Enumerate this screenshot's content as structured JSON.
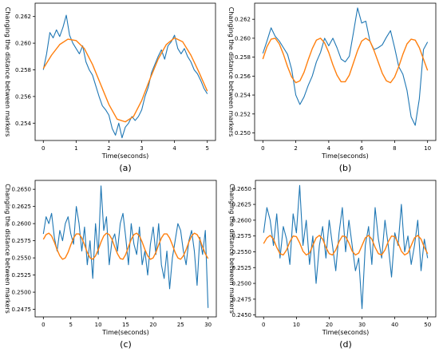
{
  "figure": {
    "series_colors": {
      "measured": "#1f77b4",
      "fit": "#ff7f0e"
    }
  },
  "chart_data": [
    {
      "type": "line",
      "panel": "(a)",
      "xlabel": "Time(seconds)",
      "ylabel": "Changing the distance between markers",
      "xlim": [
        -0.25,
        5.25
      ],
      "ylim": [
        0.2527,
        0.263
      ],
      "xticks": [
        0,
        1,
        2,
        3,
        4,
        5
      ],
      "yticks": [
        "0.254",
        "0.256",
        "0.258",
        "0.260",
        "0.262"
      ],
      "yticks_values": [
        0.254,
        0.256,
        0.258,
        0.26,
        0.262
      ],
      "series": [
        {
          "x": [
            0,
            0.1,
            0.2,
            0.3,
            0.4,
            0.5,
            0.6,
            0.7,
            0.8,
            0.9,
            1.0,
            1.1,
            1.2,
            1.3,
            1.4,
            1.5,
            1.6,
            1.7,
            1.8,
            1.9,
            2.0,
            2.1,
            2.2,
            2.3,
            2.4,
            2.5,
            2.6,
            2.7,
            2.8,
            2.9,
            3.0,
            3.1,
            3.2,
            3.3,
            3.4,
            3.5,
            3.6,
            3.7,
            3.8,
            3.9,
            4.0,
            4.1,
            4.2,
            4.3,
            4.4,
            4.5,
            4.6,
            4.7,
            4.8,
            4.9,
            5.0
          ],
          "y": [
            0.258,
            0.2592,
            0.2608,
            0.2604,
            0.261,
            0.2605,
            0.2612,
            0.2621,
            0.2606,
            0.26,
            0.2596,
            0.2592,
            0.2598,
            0.2586,
            0.258,
            0.2576,
            0.2568,
            0.256,
            0.2553,
            0.255,
            0.2546,
            0.2536,
            0.2531,
            0.254,
            0.2529,
            0.2537,
            0.254,
            0.2545,
            0.2542,
            0.2545,
            0.255,
            0.256,
            0.2567,
            0.2578,
            0.2584,
            0.259,
            0.2595,
            0.2588,
            0.2598,
            0.2601,
            0.2606,
            0.2596,
            0.2592,
            0.2596,
            0.259,
            0.2586,
            0.258,
            0.2577,
            0.2572,
            0.2566,
            0.2562
          ]
        },
        {
          "x": [
            0,
            0.25,
            0.5,
            0.75,
            1.0,
            1.25,
            1.5,
            1.75,
            2.0,
            2.25,
            2.5,
            2.75,
            3.0,
            3.25,
            3.5,
            3.75,
            4.0,
            4.25,
            4.5,
            4.75,
            5.0
          ],
          "y": [
            0.2581,
            0.2591,
            0.2599,
            0.2603,
            0.2602,
            0.2596,
            0.2584,
            0.2569,
            0.2554,
            0.2543,
            0.2541,
            0.2545,
            0.2557,
            0.2573,
            0.2588,
            0.2599,
            0.2604,
            0.2601,
            0.2591,
            0.2578,
            0.2564
          ]
        }
      ]
    },
    {
      "type": "line",
      "panel": "(b)",
      "xlabel": "Time(seconds)",
      "ylabel": "Changing the distance between markers",
      "xlim": [
        -0.5,
        10.5
      ],
      "ylim": [
        0.2492,
        0.2637
      ],
      "xticks": [
        0,
        2,
        4,
        6,
        8,
        10
      ],
      "yticks": [
        "0.250",
        "0.252",
        "0.254",
        "0.256",
        "0.258",
        "0.260",
        "0.262"
      ],
      "yticks_values": [
        0.25,
        0.252,
        0.254,
        0.256,
        0.258,
        0.26,
        0.262
      ],
      "series": [
        {
          "x": [
            0,
            0.25,
            0.5,
            0.75,
            1.0,
            1.25,
            1.5,
            1.75,
            2.0,
            2.25,
            2.5,
            2.75,
            3.0,
            3.25,
            3.5,
            3.75,
            4.0,
            4.25,
            4.5,
            4.75,
            5.0,
            5.25,
            5.5,
            5.75,
            6.0,
            6.25,
            6.5,
            6.75,
            7.0,
            7.25,
            7.5,
            7.75,
            8.0,
            8.25,
            8.5,
            8.75,
            9.0,
            9.25,
            9.5,
            9.75,
            10.0
          ],
          "y": [
            0.2584,
            0.2597,
            0.2611,
            0.2602,
            0.2597,
            0.259,
            0.2583,
            0.2567,
            0.254,
            0.253,
            0.2538,
            0.255,
            0.256,
            0.2575,
            0.2585,
            0.26,
            0.2592,
            0.26,
            0.259,
            0.2578,
            0.2575,
            0.2581,
            0.2606,
            0.2632,
            0.2616,
            0.2618,
            0.2597,
            0.2588,
            0.259,
            0.2593,
            0.2601,
            0.2608,
            0.259,
            0.257,
            0.2562,
            0.2545,
            0.2517,
            0.2508,
            0.2536,
            0.2588,
            0.2596
          ]
        },
        {
          "x": [
            0,
            0.25,
            0.5,
            0.75,
            1.0,
            1.25,
            1.5,
            1.75,
            2.0,
            2.25,
            2.5,
            2.75,
            3.0,
            3.25,
            3.5,
            3.75,
            4.0,
            4.25,
            4.5,
            4.75,
            5.0,
            5.25,
            5.5,
            5.75,
            6.0,
            6.25,
            6.5,
            6.75,
            7.0,
            7.25,
            7.5,
            7.75,
            8.0,
            8.25,
            8.5,
            8.75,
            9.0,
            9.25,
            9.5,
            9.75,
            10.0
          ],
          "y": [
            0.2578,
            0.2591,
            0.2599,
            0.26,
            0.2594,
            0.2583,
            0.257,
            0.2559,
            0.2553,
            0.2555,
            0.2564,
            0.2577,
            0.2589,
            0.2598,
            0.26,
            0.2595,
            0.2585,
            0.2572,
            0.2561,
            0.2554,
            0.2554,
            0.2561,
            0.2574,
            0.2587,
            0.2597,
            0.26,
            0.2597,
            0.2587,
            0.2575,
            0.2563,
            0.2555,
            0.2553,
            0.2559,
            0.257,
            0.2583,
            0.2594,
            0.2599,
            0.2598,
            0.259,
            0.2578,
            0.2566
          ]
        }
      ]
    },
    {
      "type": "line",
      "panel": "(c)",
      "xlabel": "Time(seconds)",
      "ylabel": "Changing the distance between markers",
      "xlim": [
        -1.5,
        31.5
      ],
      "ylim": [
        0.2464,
        0.2663
      ],
      "xticks": [
        0,
        5,
        10,
        15,
        20,
        25,
        30
      ],
      "yticks": [
        "0.2475",
        "0.2500",
        "0.2525",
        "0.2550",
        "0.2575",
        "0.2600",
        "0.2625",
        "0.2650"
      ],
      "yticks_values": [
        0.2475,
        0.25,
        0.2525,
        0.255,
        0.2575,
        0.26,
        0.2625,
        0.265
      ],
      "series": [
        {
          "x": [
            0,
            0.5,
            1,
            1.5,
            2,
            2.5,
            3,
            3.5,
            4,
            4.5,
            5,
            5.5,
            6,
            6.5,
            7,
            7.5,
            8,
            8.5,
            9,
            9.5,
            10,
            10.5,
            11,
            11.5,
            12,
            12.5,
            13,
            13.5,
            14,
            14.5,
            15,
            15.5,
            16,
            16.5,
            17,
            17.5,
            18,
            18.5,
            19,
            19.5,
            20,
            20.5,
            21,
            21.5,
            22,
            22.5,
            23,
            23.5,
            24,
            24.5,
            25,
            25.5,
            26,
            26.5,
            27,
            27.5,
            28,
            28.5,
            29,
            29.5,
            30
          ],
          "y": [
            0.2585,
            0.261,
            0.26,
            0.2615,
            0.258,
            0.256,
            0.259,
            0.2575,
            0.26,
            0.261,
            0.2585,
            0.257,
            0.2625,
            0.26,
            0.256,
            0.2595,
            0.254,
            0.2575,
            0.252,
            0.26,
            0.2555,
            0.2655,
            0.259,
            0.261,
            0.254,
            0.2575,
            0.2585,
            0.256,
            0.26,
            0.2615,
            0.258,
            0.254,
            0.26,
            0.257,
            0.2555,
            0.2595,
            0.254,
            0.256,
            0.2525,
            0.257,
            0.2595,
            0.2555,
            0.26,
            0.254,
            0.252,
            0.256,
            0.2505,
            0.255,
            0.2575,
            0.26,
            0.259,
            0.256,
            0.254,
            0.2575,
            0.259,
            0.256,
            0.251,
            0.258,
            0.2555,
            0.259,
            0.2477
          ]
        },
        {
          "x": [
            0,
            0.5,
            1,
            1.5,
            2,
            2.5,
            3,
            3.5,
            4,
            4.5,
            5,
            5.5,
            6,
            6.5,
            7,
            7.5,
            8,
            8.5,
            9,
            9.5,
            10,
            10.5,
            11,
            11.5,
            12,
            12.5,
            13,
            13.5,
            14,
            14.5,
            15,
            15.5,
            16,
            16.5,
            17,
            17.5,
            18,
            18.5,
            19,
            19.5,
            20,
            20.5,
            21,
            21.5,
            22,
            22.5,
            23,
            23.5,
            24,
            24.5,
            25,
            25.5,
            26,
            26.5,
            27,
            27.5,
            28,
            28.5,
            29,
            29.5,
            30
          ],
          "y": [
            0.2577,
            0.2584,
            0.2586,
            0.2582,
            0.2573,
            0.2562,
            0.2553,
            0.2548,
            0.255,
            0.2558,
            0.2569,
            0.2579,
            0.2585,
            0.2585,
            0.2579,
            0.2569,
            0.2558,
            0.255,
            0.2548,
            0.2553,
            0.2562,
            0.2573,
            0.2582,
            0.2586,
            0.2584,
            0.2577,
            0.2566,
            0.2556,
            0.2549,
            0.2548,
            0.2555,
            0.2566,
            0.2577,
            0.2584,
            0.2586,
            0.2582,
            0.2573,
            0.2562,
            0.2553,
            0.2548,
            0.255,
            0.2558,
            0.2569,
            0.2579,
            0.2585,
            0.2585,
            0.2579,
            0.2569,
            0.2558,
            0.255,
            0.2548,
            0.2553,
            0.2562,
            0.2573,
            0.2582,
            0.2586,
            0.2584,
            0.2577,
            0.2566,
            0.2556,
            0.2549
          ]
        }
      ]
    },
    {
      "type": "line",
      "panel": "(d)",
      "xlabel": "Time(seconds)",
      "ylabel": "Changing the distance between markers",
      "xlim": [
        -2.5,
        52.5
      ],
      "ylim": [
        0.2447,
        0.2663
      ],
      "xticks": [
        0,
        10,
        20,
        30,
        40,
        50
      ],
      "yticks": [
        "0.2450",
        "0.2475",
        "0.2500",
        "0.2525",
        "0.2550",
        "0.2575",
        "0.2600",
        "0.2625",
        "0.2650"
      ],
      "yticks_values": [
        0.245,
        0.2475,
        0.25,
        0.2525,
        0.255,
        0.2575,
        0.26,
        0.2625,
        0.265
      ],
      "series": [
        {
          "x": [
            0,
            1,
            2,
            3,
            4,
            5,
            6,
            7,
            8,
            9,
            10,
            11,
            12,
            13,
            14,
            15,
            16,
            17,
            18,
            19,
            20,
            21,
            22,
            23,
            24,
            25,
            26,
            27,
            28,
            29,
            30,
            31,
            32,
            33,
            34,
            35,
            36,
            37,
            38,
            39,
            40,
            41,
            42,
            43,
            44,
            45,
            46,
            47,
            48,
            49,
            50
          ],
          "y": [
            0.258,
            0.262,
            0.26,
            0.256,
            0.261,
            0.254,
            0.259,
            0.257,
            0.253,
            0.261,
            0.258,
            0.2655,
            0.256,
            0.26,
            0.253,
            0.2575,
            0.25,
            0.256,
            0.259,
            0.254,
            0.26,
            0.256,
            0.252,
            0.258,
            0.262,
            0.255,
            0.26,
            0.256,
            0.252,
            0.254,
            0.246,
            0.256,
            0.259,
            0.253,
            0.262,
            0.257,
            0.254,
            0.26,
            0.256,
            0.251,
            0.258,
            0.256,
            0.2625,
            0.255,
            0.2575,
            0.253,
            0.256,
            0.26,
            0.252,
            0.257,
            0.254
          ]
        },
        {
          "x": [
            0,
            1,
            2,
            3,
            4,
            5,
            6,
            7,
            8,
            9,
            10,
            11,
            12,
            13,
            14,
            15,
            16,
            17,
            18,
            19,
            20,
            21,
            22,
            23,
            24,
            25,
            26,
            27,
            28,
            29,
            30,
            31,
            32,
            33,
            34,
            35,
            36,
            37,
            38,
            39,
            40,
            41,
            42,
            43,
            44,
            45,
            46,
            47,
            48,
            49,
            50
          ],
          "y": [
            0.2563,
            0.2572,
            0.2576,
            0.257,
            0.2557,
            0.2547,
            0.2545,
            0.2553,
            0.2566,
            0.2575,
            0.2574,
            0.2564,
            0.2551,
            0.2545,
            0.2548,
            0.256,
            0.2572,
            0.2576,
            0.257,
            0.2557,
            0.2547,
            0.2545,
            0.2553,
            0.2566,
            0.2575,
            0.2574,
            0.2564,
            0.2551,
            0.2545,
            0.2548,
            0.256,
            0.2572,
            0.2576,
            0.257,
            0.2557,
            0.2547,
            0.2545,
            0.2553,
            0.2566,
            0.2575,
            0.2574,
            0.2564,
            0.2551,
            0.2545,
            0.2548,
            0.256,
            0.2572,
            0.2576,
            0.257,
            0.2557,
            0.2547
          ]
        }
      ]
    }
  ]
}
